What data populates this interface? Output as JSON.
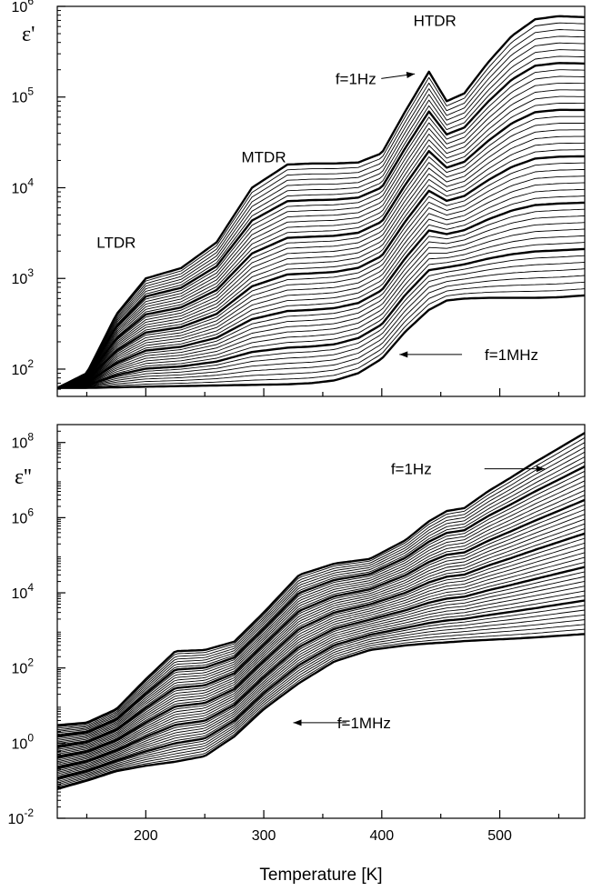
{
  "chart_data": [
    {
      "type": "line",
      "panel": "top",
      "ylabel": "ε'",
      "yscale": "log",
      "ylim": [
        50,
        1000000
      ],
      "xlim": [
        125,
        572
      ],
      "yticks": [
        {
          "value": 100,
          "base": "10",
          "exp": "2"
        },
        {
          "value": 1000,
          "base": "10",
          "exp": "3"
        },
        {
          "value": 10000,
          "base": "10",
          "exp": "4"
        },
        {
          "value": 100000,
          "base": "10",
          "exp": "5"
        },
        {
          "value": 1000000,
          "base": "10",
          "exp": "6"
        }
      ],
      "annotations": [
        {
          "text": "LTDR",
          "x": 175,
          "y": 2500
        },
        {
          "text": "MTDR",
          "x": 300,
          "y": 22000
        },
        {
          "text": "HTDR",
          "x": 445,
          "y": 700000
        },
        {
          "text": "f=1Hz",
          "x": 378,
          "y": 160000,
          "arrow_to": [
            428,
            180000
          ]
        },
        {
          "text": "f=1MHz",
          "x": 510,
          "y": 145,
          "arrow_from": [
            468,
            145
          ],
          "arrow_to": [
            415,
            145
          ]
        }
      ],
      "series": [
        {
          "label": "f=1Hz",
          "x": [
            125,
            150,
            175,
            200,
            230,
            260,
            290,
            320,
            340,
            360,
            380,
            400,
            420,
            440,
            455,
            470,
            490,
            510,
            530,
            550,
            572
          ],
          "values": [
            62,
            90,
            400,
            1000,
            1300,
            2500,
            10000,
            18000,
            18500,
            18500,
            19000,
            24000,
            70000,
            190000,
            90000,
            110000,
            240000,
            470000,
            720000,
            780000,
            760000
          ]
        },
        {
          "label": "f=1MHz",
          "x": [
            125,
            150,
            175,
            200,
            230,
            260,
            290,
            320,
            340,
            360,
            380,
            400,
            420,
            440,
            455,
            470,
            490,
            510,
            530,
            550,
            572
          ],
          "values": [
            62,
            62,
            63,
            64,
            65,
            66,
            67,
            68,
            70,
            75,
            90,
            130,
            260,
            450,
            570,
            600,
            610,
            610,
            610,
            620,
            650
          ]
        }
      ]
    },
    {
      "type": "line",
      "panel": "bottom",
      "ylabel": "ε''",
      "xlabel": "Temperature [K]",
      "yscale": "log",
      "ylim": [
        0.01,
        300000000
      ],
      "xlim": [
        125,
        572
      ],
      "xticks": [
        200,
        300,
        400,
        500
      ],
      "yticks": [
        {
          "value": 0.01,
          "base": "10",
          "exp": "-2"
        },
        {
          "value": 1,
          "base": "10",
          "exp": "0"
        },
        {
          "value": 100,
          "base": "10",
          "exp": "2"
        },
        {
          "value": 10000,
          "base": "10",
          "exp": "4"
        },
        {
          "value": 1000000,
          "base": "10",
          "exp": "6"
        },
        {
          "value": 100000000,
          "base": "10",
          "exp": "8"
        }
      ],
      "annotations": [
        {
          "text": "f=1Hz",
          "x": 425,
          "y": 20000000,
          "arrow_from": [
            487,
            20000000
          ],
          "arrow_to": [
            538,
            20000000
          ]
        },
        {
          "text": "f=1MHz",
          "x": 385,
          "y": 3.5,
          "arrow_from": [
            370,
            3.5
          ],
          "arrow_to": [
            325,
            3.5
          ]
        }
      ],
      "series": [
        {
          "label": "f=1Hz",
          "x": [
            125,
            150,
            175,
            200,
            225,
            250,
            275,
            300,
            330,
            360,
            390,
            420,
            440,
            455,
            470,
            490,
            510,
            530,
            550,
            572
          ],
          "values": [
            3,
            3.5,
            8,
            50,
            280,
            300,
            500,
            3000,
            30000,
            60000,
            80000,
            250000,
            800000,
            1500000,
            1800000,
            5000000,
            12000000,
            30000000,
            70000000,
            180000000
          ]
        },
        {
          "label": "f=1MHz",
          "x": [
            125,
            150,
            175,
            200,
            225,
            250,
            275,
            300,
            330,
            360,
            390,
            420,
            440,
            455,
            470,
            490,
            510,
            530,
            550,
            572
          ],
          "values": [
            0.06,
            0.1,
            0.18,
            0.25,
            0.32,
            0.45,
            1.5,
            8,
            40,
            150,
            300,
            400,
            450,
            480,
            520,
            560,
            600,
            650,
            720,
            800
          ]
        }
      ]
    }
  ]
}
